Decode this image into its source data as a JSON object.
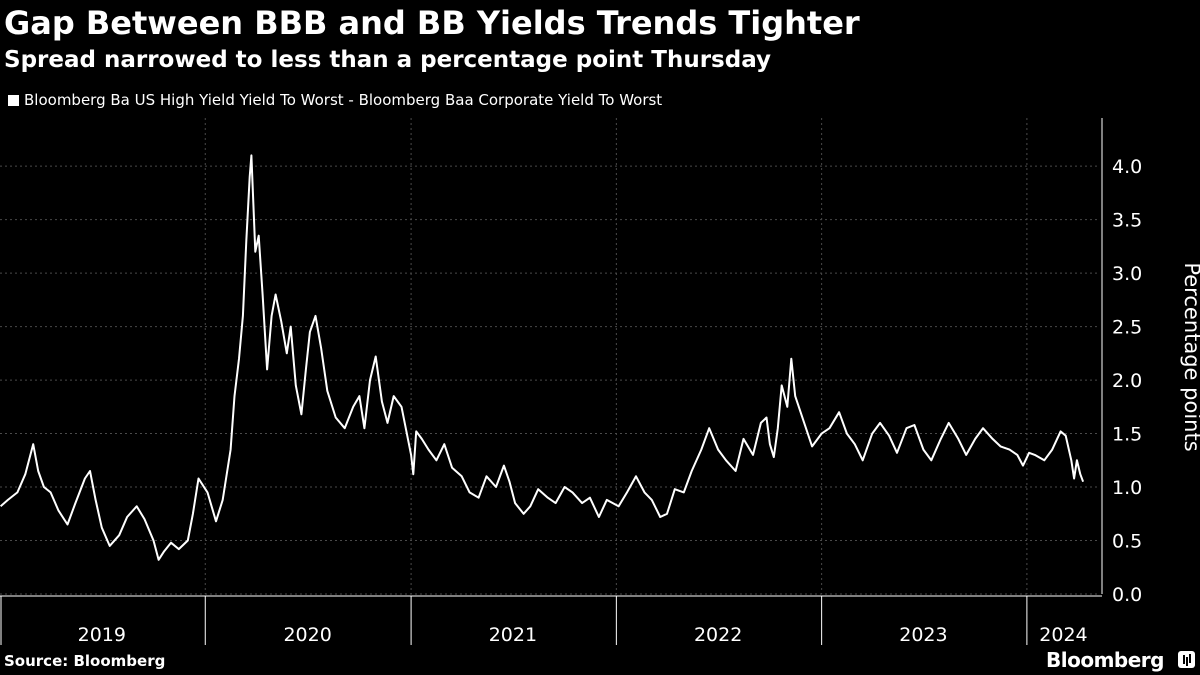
{
  "title": "Gap Between BBB and BB Yields Trends Tighter",
  "subtitle": "Spread narrowed to less than a percentage point Thursday",
  "source": "Source: Bloomberg",
  "brand": "Bloomberg",
  "colors": {
    "background": "#000000",
    "line": "#ffffff",
    "grid": "#4a4a4a",
    "text": "#ffffff"
  },
  "chart_data": {
    "type": "line",
    "title": "Gap Between BBB and BB Yields Trends Tighter",
    "subtitle": "Spread narrowed to less than a percentage point Thursday",
    "ylabel": "Percentage points",
    "xlabel": "",
    "ylim": [
      0,
      4.45
    ],
    "xlim": [
      "2019-01-01",
      "2024-05-10"
    ],
    "y_ticks": [
      "4.0",
      "3.5",
      "3.0",
      "2.5",
      "2.0",
      "1.5",
      "1.0",
      "0.5",
      "0.0"
    ],
    "y_tick_values": [
      4.0,
      3.5,
      3.0,
      2.5,
      2.0,
      1.5,
      1.0,
      0.5,
      0.0
    ],
    "x_tick_labels": [
      "2019",
      "2020",
      "2021",
      "2022",
      "2023",
      "2024"
    ],
    "x_tick_dates": [
      "2019-07-01",
      "2020-07-01",
      "2021-07-01",
      "2022-07-01",
      "2023-07-01",
      "2024-03-06"
    ],
    "year_boundaries": [
      "2019-01-01",
      "2020-01-01",
      "2021-01-01",
      "2022-01-01",
      "2023-01-01",
      "2024-01-01"
    ],
    "grid": true,
    "legend_position": "top-left",
    "series": [
      {
        "name": "Bloomberg Ba US High Yield Yield To Worst - Bloomberg Baa Corporate Yield To Worst",
        "points": [
          [
            "2019-01-02",
            0.82
          ],
          [
            "2019-01-15",
            0.88
          ],
          [
            "2019-02-01",
            0.95
          ],
          [
            "2019-02-15",
            1.12
          ],
          [
            "2019-03-01",
            1.4
          ],
          [
            "2019-03-10",
            1.15
          ],
          [
            "2019-03-20",
            1.0
          ],
          [
            "2019-04-01",
            0.95
          ],
          [
            "2019-04-15",
            0.78
          ],
          [
            "2019-05-01",
            0.65
          ],
          [
            "2019-05-15",
            0.85
          ],
          [
            "2019-06-01",
            1.08
          ],
          [
            "2019-06-10",
            1.15
          ],
          [
            "2019-06-20",
            0.88
          ],
          [
            "2019-07-01",
            0.62
          ],
          [
            "2019-07-15",
            0.45
          ],
          [
            "2019-08-01",
            0.55
          ],
          [
            "2019-08-15",
            0.72
          ],
          [
            "2019-09-01",
            0.82
          ],
          [
            "2019-09-15",
            0.7
          ],
          [
            "2019-10-01",
            0.5
          ],
          [
            "2019-10-10",
            0.32
          ],
          [
            "2019-10-20",
            0.4
          ],
          [
            "2019-11-01",
            0.48
          ],
          [
            "2019-11-15",
            0.42
          ],
          [
            "2019-12-01",
            0.5
          ],
          [
            "2019-12-10",
            0.75
          ],
          [
            "2019-12-20",
            1.08
          ],
          [
            "2020-01-05",
            0.95
          ],
          [
            "2020-01-20",
            0.68
          ],
          [
            "2020-02-01",
            0.88
          ],
          [
            "2020-02-15",
            1.35
          ],
          [
            "2020-02-22",
            1.85
          ],
          [
            "2020-03-01",
            2.2
          ],
          [
            "2020-03-08",
            2.6
          ],
          [
            "2020-03-14",
            3.3
          ],
          [
            "2020-03-20",
            3.9
          ],
          [
            "2020-03-23",
            4.1
          ],
          [
            "2020-03-30",
            3.2
          ],
          [
            "2020-04-05",
            3.35
          ],
          [
            "2020-04-12",
            2.8
          ],
          [
            "2020-04-20",
            2.1
          ],
          [
            "2020-04-28",
            2.6
          ],
          [
            "2020-05-05",
            2.8
          ],
          [
            "2020-05-15",
            2.55
          ],
          [
            "2020-05-25",
            2.25
          ],
          [
            "2020-06-01",
            2.5
          ],
          [
            "2020-06-10",
            1.95
          ],
          [
            "2020-06-20",
            1.68
          ],
          [
            "2020-06-28",
            2.1
          ],
          [
            "2020-07-05",
            2.45
          ],
          [
            "2020-07-15",
            2.6
          ],
          [
            "2020-07-25",
            2.3
          ],
          [
            "2020-08-05",
            1.9
          ],
          [
            "2020-08-20",
            1.65
          ],
          [
            "2020-09-05",
            1.55
          ],
          [
            "2020-09-20",
            1.75
          ],
          [
            "2020-10-01",
            1.85
          ],
          [
            "2020-10-10",
            1.55
          ],
          [
            "2020-10-20",
            2.0
          ],
          [
            "2020-10-30",
            2.22
          ],
          [
            "2020-11-10",
            1.8
          ],
          [
            "2020-11-20",
            1.6
          ],
          [
            "2020-12-01",
            1.85
          ],
          [
            "2020-12-15",
            1.75
          ],
          [
            "2021-01-01",
            1.3
          ],
          [
            "2021-01-05",
            1.12
          ],
          [
            "2021-01-10",
            1.52
          ],
          [
            "2021-01-20",
            1.45
          ],
          [
            "2021-02-01",
            1.35
          ],
          [
            "2021-02-15",
            1.25
          ],
          [
            "2021-03-01",
            1.4
          ],
          [
            "2021-03-15",
            1.18
          ],
          [
            "2021-04-01",
            1.1
          ],
          [
            "2021-04-15",
            0.95
          ],
          [
            "2021-05-01",
            0.9
          ],
          [
            "2021-05-15",
            1.1
          ],
          [
            "2021-06-01",
            1.0
          ],
          [
            "2021-06-15",
            1.2
          ],
          [
            "2021-06-25",
            1.05
          ],
          [
            "2021-07-05",
            0.85
          ],
          [
            "2021-07-20",
            0.75
          ],
          [
            "2021-08-01",
            0.82
          ],
          [
            "2021-08-15",
            0.98
          ],
          [
            "2021-09-01",
            0.9
          ],
          [
            "2021-09-15",
            0.85
          ],
          [
            "2021-10-01",
            1.0
          ],
          [
            "2021-10-15",
            0.95
          ],
          [
            "2021-11-01",
            0.85
          ],
          [
            "2021-11-15",
            0.9
          ],
          [
            "2021-12-01",
            0.72
          ],
          [
            "2021-12-15",
            0.88
          ],
          [
            "2022-01-05",
            0.82
          ],
          [
            "2022-01-20",
            0.95
          ],
          [
            "2022-02-05",
            1.1
          ],
          [
            "2022-02-20",
            0.95
          ],
          [
            "2022-03-05",
            0.88
          ],
          [
            "2022-03-20",
            0.72
          ],
          [
            "2022-04-01",
            0.75
          ],
          [
            "2022-04-15",
            0.98
          ],
          [
            "2022-05-01",
            0.95
          ],
          [
            "2022-05-15",
            1.15
          ],
          [
            "2022-06-01",
            1.35
          ],
          [
            "2022-06-15",
            1.55
          ],
          [
            "2022-07-01",
            1.35
          ],
          [
            "2022-07-15",
            1.25
          ],
          [
            "2022-08-01",
            1.15
          ],
          [
            "2022-08-15",
            1.45
          ],
          [
            "2022-09-01",
            1.3
          ],
          [
            "2022-09-15",
            1.6
          ],
          [
            "2022-09-25",
            1.65
          ],
          [
            "2022-10-01",
            1.4
          ],
          [
            "2022-10-08",
            1.28
          ],
          [
            "2022-10-15",
            1.55
          ],
          [
            "2022-10-22",
            1.95
          ],
          [
            "2022-11-01",
            1.75
          ],
          [
            "2022-11-08",
            2.2
          ],
          [
            "2022-11-15",
            1.85
          ],
          [
            "2022-12-01",
            1.6
          ],
          [
            "2022-12-15",
            1.38
          ],
          [
            "2023-01-01",
            1.5
          ],
          [
            "2023-01-15",
            1.55
          ],
          [
            "2023-02-01",
            1.7
          ],
          [
            "2023-02-15",
            1.5
          ],
          [
            "2023-03-01",
            1.4
          ],
          [
            "2023-03-15",
            1.25
          ],
          [
            "2023-04-01",
            1.5
          ],
          [
            "2023-04-15",
            1.6
          ],
          [
            "2023-05-01",
            1.48
          ],
          [
            "2023-05-15",
            1.32
          ],
          [
            "2023-06-01",
            1.55
          ],
          [
            "2023-06-15",
            1.58
          ],
          [
            "2023-07-01",
            1.35
          ],
          [
            "2023-07-15",
            1.25
          ],
          [
            "2023-08-01",
            1.45
          ],
          [
            "2023-08-15",
            1.6
          ],
          [
            "2023-09-01",
            1.45
          ],
          [
            "2023-09-15",
            1.3
          ],
          [
            "2023-10-01",
            1.45
          ],
          [
            "2023-10-15",
            1.55
          ],
          [
            "2023-11-01",
            1.45
          ],
          [
            "2023-11-15",
            1.38
          ],
          [
            "2023-12-01",
            1.35
          ],
          [
            "2023-12-15",
            1.3
          ],
          [
            "2023-12-25",
            1.2
          ],
          [
            "2024-01-05",
            1.32
          ],
          [
            "2024-01-15",
            1.3
          ],
          [
            "2024-02-01",
            1.25
          ],
          [
            "2024-02-15",
            1.35
          ],
          [
            "2024-03-01",
            1.52
          ],
          [
            "2024-03-10",
            1.48
          ],
          [
            "2024-03-20",
            1.25
          ],
          [
            "2024-03-25",
            1.08
          ],
          [
            "2024-03-30",
            1.25
          ],
          [
            "2024-04-05",
            1.12
          ],
          [
            "2024-04-10",
            1.05
          ]
        ]
      }
    ]
  }
}
